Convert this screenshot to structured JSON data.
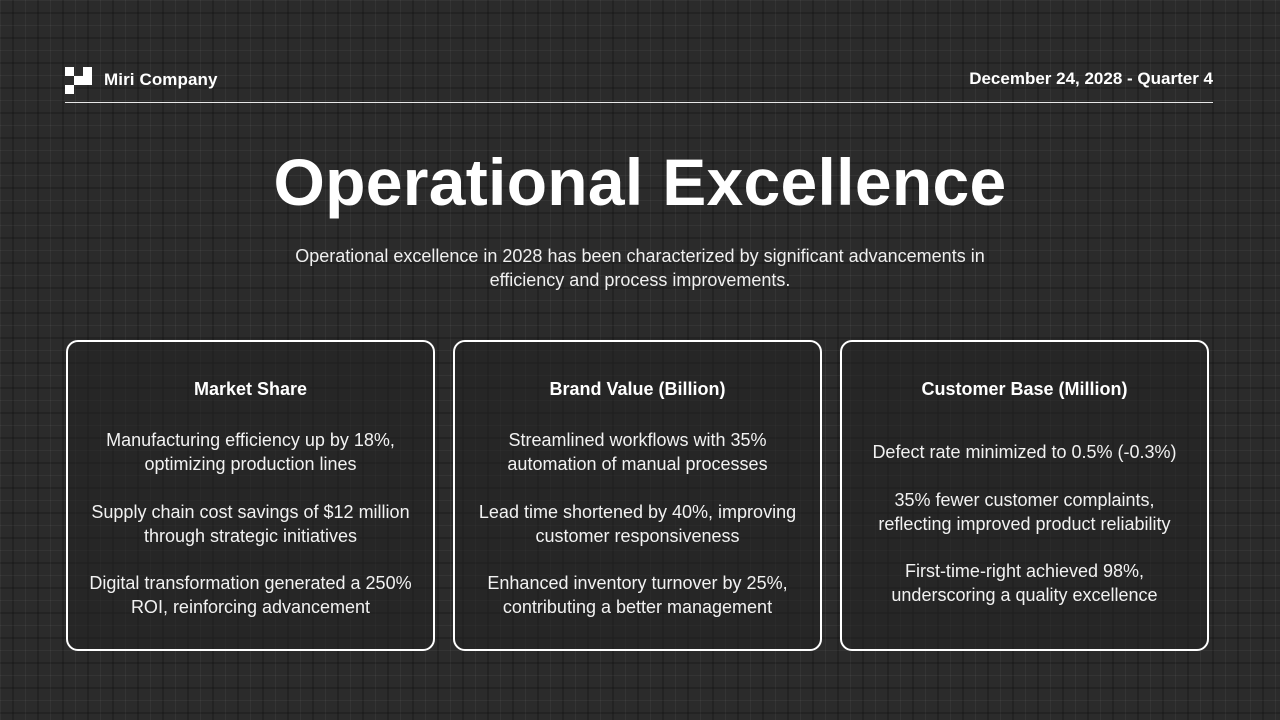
{
  "header": {
    "company": "Miri Company",
    "date": "December 24, 2028 - Quarter 4",
    "logo_icon": "checker-logo-icon"
  },
  "slide": {
    "title": "Operational Excellence",
    "subtitle": "Operational excellence in 2028 has been characterized by significant advancements in efficiency and process improvements."
  },
  "cards": [
    {
      "title": "Market Share",
      "points": [
        "Manufacturing efficiency up by 18%, optimizing production lines",
        "Supply chain cost savings of $12 million through strategic initiatives",
        "Digital transformation generated a 250% ROI, reinforcing advancement"
      ]
    },
    {
      "title": "Brand Value (Billion)",
      "points": [
        "Streamlined workflows with 35% automation of manual processes",
        "Lead time shortened by 40%, improving customer responsiveness",
        "Enhanced inventory turnover by 25%, contributing a better management"
      ]
    },
    {
      "title": "Customer Base (Million)",
      "points": [
        "Defect rate minimized to 0.5% (-0.3%)",
        "35% fewer customer complaints, reflecting improved product reliability",
        "First-time-right achieved 98%, underscoring a quality excellence"
      ]
    }
  ],
  "colors": {
    "background": "#2b2b2b",
    "text": "#ffffff",
    "border": "#ffffff"
  }
}
